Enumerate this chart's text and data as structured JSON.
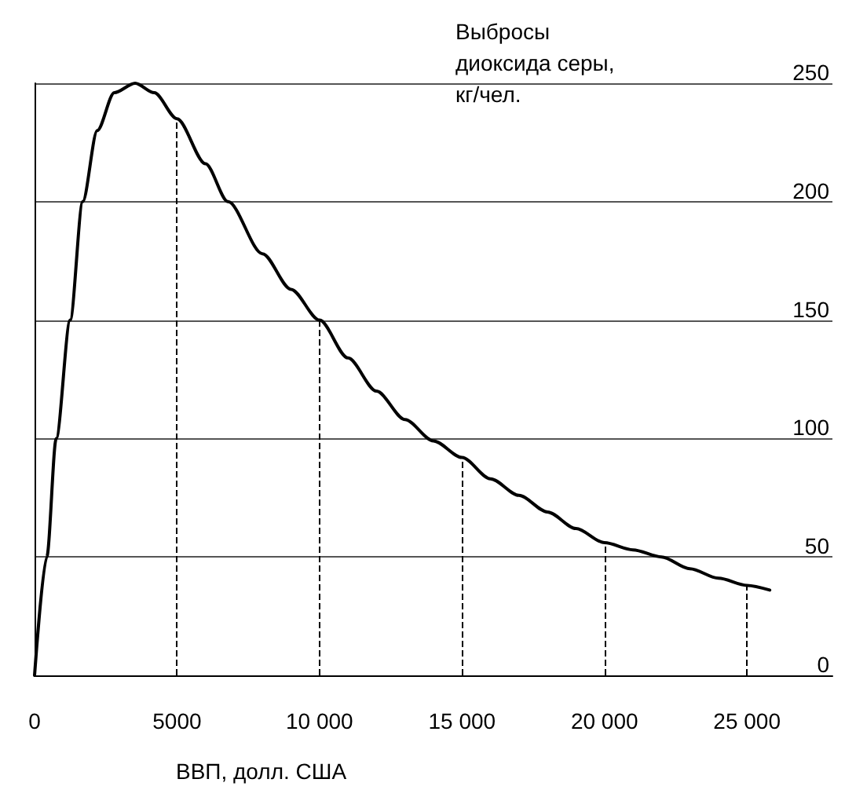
{
  "chart_data": {
    "type": "line",
    "xlabel": "ВВП, долл. США",
    "ylabel": "Выбросы\nдиоксида серы,\nкг/чел.",
    "x": [
      0,
      430,
      760,
      1250,
      1690,
      2200,
      2800,
      3530,
      4200,
      5000,
      6000,
      6790,
      8000,
      9000,
      10000,
      11000,
      12000,
      13000,
      14000,
      15000,
      16000,
      17000,
      18000,
      19000,
      20000,
      21000,
      22000,
      23000,
      24000,
      25000,
      25800
    ],
    "series": [
      {
        "color": "#000000",
        "values": [
          0,
          50,
          100,
          150,
          200,
          230,
          246,
          250,
          246,
          235,
          216,
          200,
          178,
          163,
          150,
          134,
          120,
          108,
          99,
          92,
          83,
          76,
          69,
          62,
          56,
          53,
          50,
          45,
          41,
          38,
          36
        ]
      }
    ],
    "xlim": [
      0,
      28000
    ],
    "xticks": [
      0,
      5000,
      {
        "value": 10000,
        "label": "10 000"
      },
      {
        "value": 15000,
        "label": "15 000"
      },
      {
        "value": 20000,
        "label": "20 000"
      },
      {
        "value": 25000,
        "label": "25 000"
      }
    ],
    "ylim": [
      0,
      250
    ],
    "yticks": [
      0,
      50,
      100,
      150,
      200,
      250
    ],
    "grid": "y",
    "marker": "none",
    "line_style": "solid",
    "ref_lines": [
      {
        "axis": "x",
        "value": 5000,
        "line_style": "dashed"
      },
      {
        "axis": "x",
        "value": 10000,
        "line_style": "dashed"
      },
      {
        "axis": "x",
        "value": 15000,
        "line_style": "dashed"
      },
      {
        "axis": "x",
        "value": 20000,
        "line_style": "dashed"
      },
      {
        "axis": "x",
        "value": 25000,
        "line_style": "dashed"
      }
    ]
  }
}
